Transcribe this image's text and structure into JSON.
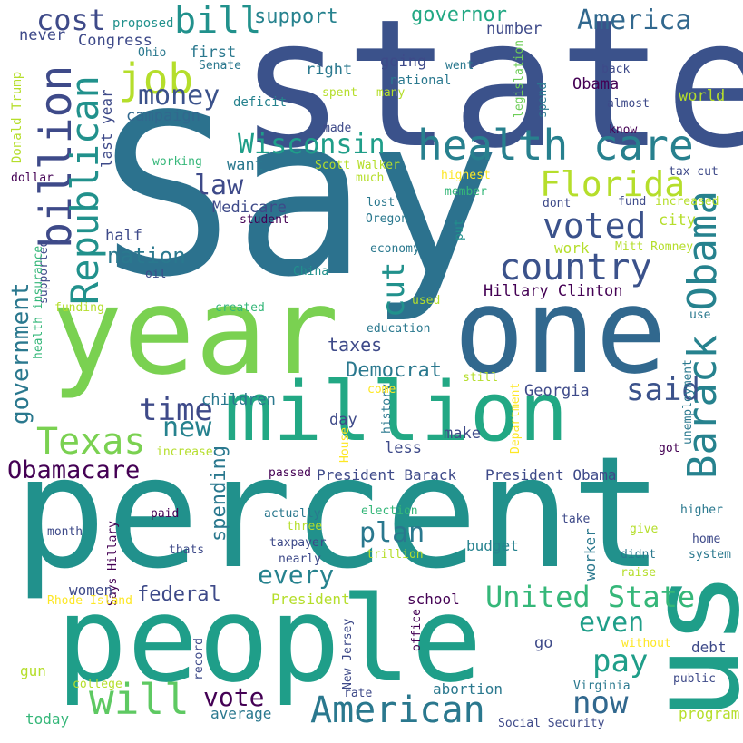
{
  "cloud": {
    "palette": {
      "dark_purple": "#440154",
      "indigo": "#3b528b",
      "blue_slate": "#31688e",
      "teal_blue": "#26828e",
      "teal": "#21918c",
      "green_teal": "#1f9e89",
      "sea_green": "#35b779",
      "green": "#6ece58",
      "lime": "#b5de2b",
      "yellow": "#fde725"
    },
    "words": [
      {
        "text": "Say",
        "color": "#2c728e"
      },
      {
        "text": "state",
        "color": "#3b528b"
      },
      {
        "text": "percent",
        "color": "#21918c"
      },
      {
        "text": "people",
        "color": "#1f9e89"
      },
      {
        "text": "us",
        "color": "#1f9e89"
      },
      {
        "text": "year",
        "color": "#7ad151"
      },
      {
        "text": "one",
        "color": "#31688e"
      },
      {
        "text": "million",
        "color": "#22a884"
      },
      {
        "text": "health care",
        "color": "#27808e"
      },
      {
        "text": "Barack Obama",
        "color": "#26828e"
      },
      {
        "text": "billion",
        "color": "#3e4a89"
      },
      {
        "text": "Republican",
        "color": "#21918c"
      },
      {
        "text": "country",
        "color": "#3b528b"
      },
      {
        "text": "voted",
        "color": "#3b528b"
      },
      {
        "text": "American",
        "color": "#2a788e"
      },
      {
        "text": "United State",
        "color": "#35b779"
      },
      {
        "text": "Texas",
        "color": "#7ad151"
      },
      {
        "text": "Florida",
        "color": "#b5de2b"
      },
      {
        "text": "Wisconsin",
        "color": "#1f9e89"
      },
      {
        "text": "job",
        "color": "#b5de2b"
      },
      {
        "text": "bill",
        "color": "#21918c"
      },
      {
        "text": "cost",
        "color": "#3e4a89"
      },
      {
        "text": "America",
        "color": "#31688e"
      },
      {
        "text": "money",
        "color": "#3b528b"
      },
      {
        "text": "will",
        "color": "#5ec962"
      },
      {
        "text": "now",
        "color": "#31688e"
      },
      {
        "text": "Obamacare",
        "color": "#440154"
      },
      {
        "text": "government",
        "color": "#2a788e"
      },
      {
        "text": "cut",
        "color": "#21918c"
      },
      {
        "text": "said",
        "color": "#3b528b"
      },
      {
        "text": "time",
        "color": "#3e4a89"
      },
      {
        "text": "new",
        "color": "#26828e"
      },
      {
        "text": "law",
        "color": "#3e4a89"
      },
      {
        "text": "pay",
        "color": "#1f9e89"
      },
      {
        "text": "plan",
        "color": "#2a788e"
      },
      {
        "text": "every",
        "color": "#26828e"
      },
      {
        "text": "even",
        "color": "#1f9e89"
      },
      {
        "text": "vote",
        "color": "#440154"
      },
      {
        "text": "nation",
        "color": "#2a788e"
      },
      {
        "text": "spending",
        "color": "#2a788e"
      },
      {
        "text": "federal",
        "color": "#3e4a89"
      },
      {
        "text": "Democrat",
        "color": "#2a788e"
      },
      {
        "text": "taxes",
        "color": "#3e4a89"
      },
      {
        "text": "Hillary Clinton",
        "color": "#440154"
      },
      {
        "text": "governor",
        "color": "#22a884"
      },
      {
        "text": "support",
        "color": "#26828e"
      },
      {
        "text": "half",
        "color": "#3e4a89"
      },
      {
        "text": "children",
        "color": "#2a788e"
      },
      {
        "text": "Medicare",
        "color": "#3e4a89"
      },
      {
        "text": "want",
        "color": "#2a788e"
      },
      {
        "text": "campaign",
        "color": "#31688e"
      },
      {
        "text": "first",
        "color": "#2a788e"
      },
      {
        "text": "right",
        "color": "#2a788e"
      },
      {
        "text": "going",
        "color": "#3e4a89"
      },
      {
        "text": "number",
        "color": "#3e4a89"
      },
      {
        "text": "Congress",
        "color": "#3e4a89"
      },
      {
        "text": "never",
        "color": "#3e4a89"
      },
      {
        "text": "proposed",
        "color": "#21918c"
      },
      {
        "text": "Obama",
        "color": "#440154"
      },
      {
        "text": "world",
        "color": "#b5de2b"
      },
      {
        "text": "national",
        "color": "#2a788e"
      },
      {
        "text": "deficit",
        "color": "#26828e"
      },
      {
        "text": "Senate",
        "color": "#2a788e"
      },
      {
        "text": "Ohio",
        "color": "#2a788e"
      },
      {
        "text": "last year",
        "color": "#3e4a89"
      },
      {
        "text": "Donald Trump",
        "color": "#b5de2b"
      },
      {
        "text": "went",
        "color": "#2a788e"
      },
      {
        "text": "spent",
        "color": "#b5de2b"
      },
      {
        "text": "many",
        "color": "#b5de2b"
      },
      {
        "text": "made",
        "color": "#3e4a89"
      },
      {
        "text": "legislation",
        "color": "#6ece58"
      },
      {
        "text": "spend",
        "color": "#2a788e"
      },
      {
        "text": "back",
        "color": "#3e4a89"
      },
      {
        "text": "almost",
        "color": "#3e4a89"
      },
      {
        "text": "know",
        "color": "#440154"
      },
      {
        "text": "tax cut",
        "color": "#3e4a89"
      },
      {
        "text": "increased",
        "color": "#b5de2b"
      },
      {
        "text": "fund",
        "color": "#3e4a89"
      },
      {
        "text": "dont",
        "color": "#3e4a89"
      },
      {
        "text": "city",
        "color": "#b5de2b"
      },
      {
        "text": "Mitt Romney",
        "color": "#b5de2b"
      },
      {
        "text": "highest",
        "color": "#fde725"
      },
      {
        "text": "member",
        "color": "#35b779"
      },
      {
        "text": "much",
        "color": "#b5de2b"
      },
      {
        "text": "lost",
        "color": "#2a788e"
      },
      {
        "text": "Oregon",
        "color": "#2a788e"
      },
      {
        "text": "Scott Walker",
        "color": "#b5de2b"
      },
      {
        "text": "put",
        "color": "#21918c"
      },
      {
        "text": "working",
        "color": "#35b779"
      },
      {
        "text": "student",
        "color": "#440154"
      },
      {
        "text": "dollar",
        "color": "#440154"
      },
      {
        "text": "oil",
        "color": "#3e4a89"
      },
      {
        "text": "China",
        "color": "#21918c"
      },
      {
        "text": "economy",
        "color": "#2a788e"
      },
      {
        "text": "work",
        "color": "#b5de2b"
      },
      {
        "text": "supported",
        "color": "#3e4a89"
      },
      {
        "text": "health insurance",
        "color": "#35b779"
      },
      {
        "text": "funding",
        "color": "#b5de2b"
      },
      {
        "text": "created",
        "color": "#35b779"
      },
      {
        "text": "used",
        "color": "#b5de2b"
      },
      {
        "text": "education",
        "color": "#2a788e"
      },
      {
        "text": "use",
        "color": "#2a788e"
      },
      {
        "text": "still",
        "color": "#b5de2b"
      },
      {
        "text": "history",
        "color": "#2a788e"
      },
      {
        "text": "Department",
        "color": "#fde725"
      },
      {
        "text": "unemployment",
        "color": "#2a788e"
      },
      {
        "text": "Georgia",
        "color": "#3e4a89"
      },
      {
        "text": "day",
        "color": "#3e4a89"
      },
      {
        "text": "make",
        "color": "#3e4a89"
      },
      {
        "text": "less",
        "color": "#3e4a89"
      },
      {
        "text": "increase",
        "color": "#b5de2b"
      },
      {
        "text": "come",
        "color": "#fde725"
      },
      {
        "text": "House",
        "color": "#fde725"
      },
      {
        "text": "got",
        "color": "#440154"
      },
      {
        "text": "passed",
        "color": "#440154"
      },
      {
        "text": "President Barack",
        "color": "#3e4a89"
      },
      {
        "text": "President Obama",
        "color": "#3e4a89"
      },
      {
        "text": "Says Hillary",
        "color": "#440154"
      },
      {
        "text": "paid",
        "color": "#440154"
      },
      {
        "text": "actually",
        "color": "#2a788e"
      },
      {
        "text": "election",
        "color": "#35b779"
      },
      {
        "text": "higher",
        "color": "#2a788e"
      },
      {
        "text": "month",
        "color": "#3e4a89"
      },
      {
        "text": "three",
        "color": "#b5de2b"
      },
      {
        "text": "take",
        "color": "#3e4a89"
      },
      {
        "text": "give",
        "color": "#b5de2b"
      },
      {
        "text": "home",
        "color": "#3e4a89"
      },
      {
        "text": "thats",
        "color": "#3e4a89"
      },
      {
        "text": "taxpayer",
        "color": "#3e4a89"
      },
      {
        "text": "trillion",
        "color": "#b5de2b"
      },
      {
        "text": "didnt",
        "color": "#2a788e"
      },
      {
        "text": "system",
        "color": "#2a788e"
      },
      {
        "text": "nearly",
        "color": "#3e4a89"
      },
      {
        "text": "budget",
        "color": "#26828e"
      },
      {
        "text": "worker",
        "color": "#2a788e"
      },
      {
        "text": "raise",
        "color": "#b5de2b"
      },
      {
        "text": "school",
        "color": "#440154"
      },
      {
        "text": "women",
        "color": "#3e4a89"
      },
      {
        "text": "President",
        "color": "#b5de2b"
      },
      {
        "text": "Rhode Island",
        "color": "#fde725"
      },
      {
        "text": "record",
        "color": "#3e4a89"
      },
      {
        "text": "New Jersey",
        "color": "#3e4a89"
      },
      {
        "text": "office",
        "color": "#440154"
      },
      {
        "text": "go",
        "color": "#3e4a89"
      },
      {
        "text": "without",
        "color": "#fde725"
      },
      {
        "text": "debt",
        "color": "#3e4a89"
      },
      {
        "text": "gun",
        "color": "#b5de2b"
      },
      {
        "text": "college",
        "color": "#b5de2b"
      },
      {
        "text": "rate",
        "color": "#3e4a89"
      },
      {
        "text": "abortion",
        "color": "#2a788e"
      },
      {
        "text": "Virginia",
        "color": "#2a788e"
      },
      {
        "text": "public",
        "color": "#3e4a89"
      },
      {
        "text": "today",
        "color": "#35b779"
      },
      {
        "text": "average",
        "color": "#2a788e"
      },
      {
        "text": "program",
        "color": "#b5de2b"
      },
      {
        "text": "Social Security",
        "color": "#3e4a89"
      }
    ]
  }
}
